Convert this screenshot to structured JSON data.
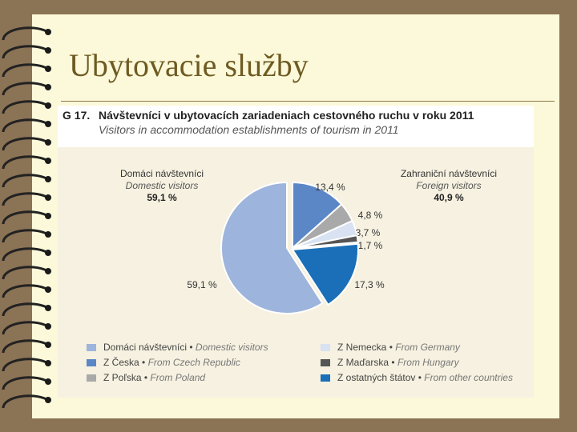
{
  "slide": {
    "title": "Ubytovacie služby"
  },
  "figure": {
    "number": "G 17.",
    "title_sk": "Návštevníci v ubytovacích zariadeniach cestovného ruchu v roku 2011",
    "title_en": "Visitors in accommodation establishments of tourism in 2011",
    "groups": {
      "domestic": {
        "label_sk": "Domáci návštevníci",
        "label_en": "Domestic visitors",
        "percent": "59,1 %"
      },
      "foreign": {
        "label_sk": "Zahraniční návštevníci",
        "label_en": "Foreign visitors",
        "percent": "40,9 %"
      }
    }
  },
  "chart_data": {
    "type": "pie",
    "unit": "%",
    "slices": [
      {
        "value_label": "13,4 %",
        "value": 13.4,
        "color": "#5b87c7"
      },
      {
        "value_label": "4,8 %",
        "value": 4.8,
        "color": "#a9a9a9"
      },
      {
        "value_label": "3,7 %",
        "value": 3.7,
        "color": "#d8e2f2"
      },
      {
        "value_label": "1,7 %",
        "value": 1.7,
        "color": "#555555"
      },
      {
        "value_label": "17,3 %",
        "value": 17.3,
        "color": "#1a6fb8"
      },
      {
        "value_label": "59,1 %",
        "value": 59.1,
        "color": "#9db4dc"
      }
    ],
    "legend": [
      {
        "sk": "Domáci návštevníci",
        "en": "Domestic visitors",
        "color": "#9db4dc"
      },
      {
        "sk": "Z Česka",
        "en": "From Czech Republic",
        "color": "#5b87c7"
      },
      {
        "sk": "Z Poľska",
        "en": "From Poland",
        "color": "#a9a9a9"
      },
      {
        "sk": "Z Nemecka",
        "en": "From Germany",
        "color": "#d8e2f2"
      },
      {
        "sk": "Z Maďarska",
        "en": "From Hungary",
        "color": "#555555"
      },
      {
        "sk": "Z ostatných štátov",
        "en": "From other countries",
        "color": "#1a6fb8"
      }
    ],
    "legend_separator": " • "
  }
}
